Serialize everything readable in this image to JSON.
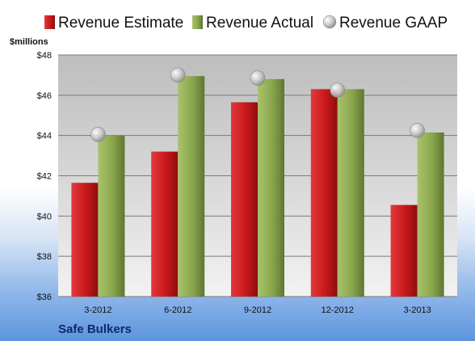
{
  "company": "Safe Bulkers",
  "colors": {
    "estimate": "#c8181b",
    "actual": "#8aa64d",
    "gaap": "#b8b8b8"
  },
  "chart_data": {
    "type": "bar",
    "title": "",
    "xlabel": "",
    "ylabel": "$millions",
    "y_tick_format": "${v}",
    "ylim": [
      36,
      48
    ],
    "y_ticks": [
      36,
      38,
      40,
      42,
      44,
      46,
      48
    ],
    "grid": true,
    "legend_position": "top",
    "categories": [
      "3-2012",
      "6-2012",
      "9-2012",
      "12-2012",
      "3-2013"
    ],
    "series": [
      {
        "name": "Revenue Estimate",
        "mark": "bar",
        "color": "#c8181b",
        "values": [
          41.65,
          43.2,
          45.65,
          46.3,
          40.55
        ]
      },
      {
        "name": "Revenue Actual",
        "mark": "bar",
        "color": "#8aa64d",
        "values": [
          44.0,
          46.95,
          46.8,
          46.3,
          44.15
        ]
      },
      {
        "name": "Revenue GAAP",
        "mark": "marker",
        "color": "#b8b8b8",
        "values": [
          44.05,
          47.0,
          46.85,
          46.25,
          44.25
        ]
      }
    ]
  }
}
